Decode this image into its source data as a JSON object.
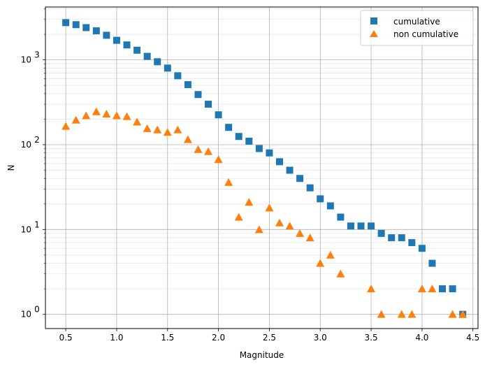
{
  "chart_data": {
    "type": "scatter",
    "xlabel": "Magnitude",
    "ylabel": "N",
    "xlim": [
      0.3,
      4.55
    ],
    "ylim": [
      0.68,
      4200
    ],
    "yscale": "log",
    "grid": true,
    "legend_position": "top-right",
    "xticks": [
      "0.5",
      "1.0",
      "1.5",
      "2.0",
      "2.5",
      "3.0",
      "3.5",
      "4.0",
      "4.5"
    ],
    "yticks": [
      {
        "value": 1,
        "base": "10",
        "exp": "0"
      },
      {
        "value": 10,
        "base": "10",
        "exp": "1"
      },
      {
        "value": 100,
        "base": "10",
        "exp": "2"
      },
      {
        "value": 1000,
        "base": "10",
        "exp": "3"
      }
    ],
    "series": [
      {
        "name": "cumulative",
        "marker": "square",
        "color": "#1f77b4",
        "x": [
          0.5,
          0.6,
          0.7,
          0.8,
          0.9,
          1.0,
          1.1,
          1.2,
          1.3,
          1.4,
          1.5,
          1.6,
          1.7,
          1.8,
          1.9,
          2.0,
          2.1,
          2.2,
          2.3,
          2.4,
          2.5,
          2.6,
          2.7,
          2.8,
          2.9,
          3.0,
          3.1,
          3.2,
          3.3,
          3.4,
          3.5,
          3.6,
          3.7,
          3.8,
          3.9,
          4.0,
          4.1,
          4.2,
          4.3,
          4.4
        ],
        "y": [
          2750,
          2600,
          2400,
          2200,
          1950,
          1700,
          1500,
          1300,
          1100,
          950,
          800,
          650,
          510,
          390,
          300,
          225,
          160,
          125,
          110,
          90,
          80,
          63,
          50,
          40,
          31,
          23,
          19,
          14,
          11,
          11,
          11,
          9,
          8,
          8,
          7,
          6,
          4,
          2,
          2,
          1
        ]
      },
      {
        "name": "non cumulative",
        "marker": "triangle",
        "color": "#ff7f0e",
        "x": [
          0.5,
          0.6,
          0.7,
          0.8,
          0.9,
          1.0,
          1.1,
          1.2,
          1.3,
          1.4,
          1.5,
          1.6,
          1.7,
          1.8,
          1.9,
          2.0,
          2.1,
          2.2,
          2.3,
          2.4,
          2.5,
          2.6,
          2.7,
          2.8,
          2.9,
          3.0,
          3.1,
          3.2,
          3.5,
          3.6,
          3.8,
          3.9,
          4.0,
          4.1,
          4.3,
          4.4
        ],
        "y": [
          165,
          195,
          220,
          245,
          230,
          220,
          215,
          185,
          155,
          150,
          140,
          150,
          115,
          88,
          83,
          67,
          36,
          14,
          21,
          10,
          18,
          12,
          11,
          9,
          8,
          4,
          5,
          3,
          2,
          1,
          1,
          1,
          2,
          2,
          1,
          1
        ]
      }
    ]
  }
}
